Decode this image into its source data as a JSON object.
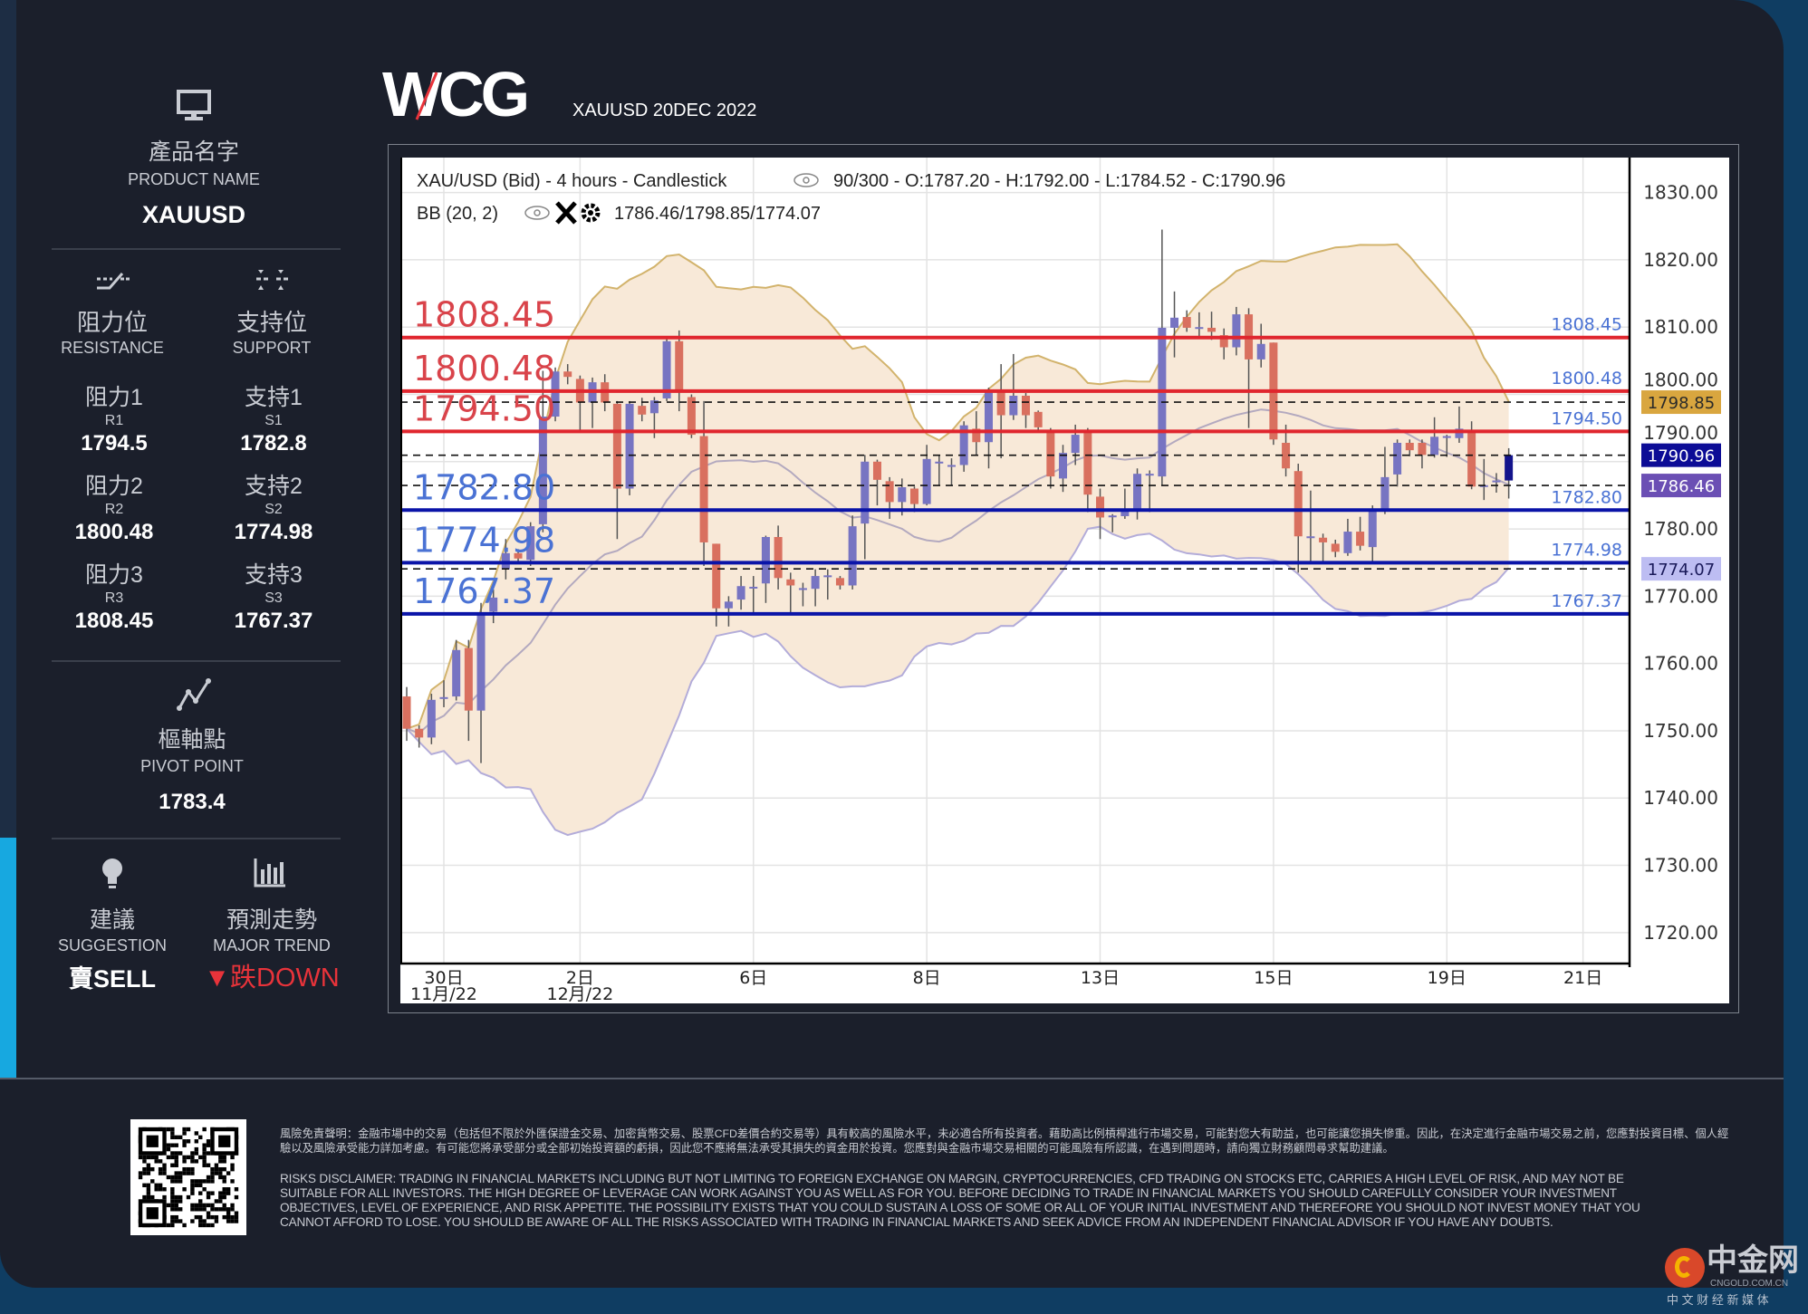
{
  "header": {
    "logo_text": "WCG",
    "subtitle": "XAUUSD 20DEC 2022"
  },
  "product": {
    "icon": "monitor-icon",
    "label_zh": "產品名字",
    "label_en": "PRODUCT NAME",
    "value": "XAUUSD"
  },
  "resistance": {
    "icon": "resistance-line-icon",
    "label_zh": "阻力位",
    "label_en": "RESISTANCE",
    "levels": [
      {
        "label_zh": "阻力1",
        "code": "R1",
        "value": "1794.5"
      },
      {
        "label_zh": "阻力2",
        "code": "R2",
        "value": "1800.48"
      },
      {
        "label_zh": "阻力3",
        "code": "R3",
        "value": "1808.45"
      }
    ]
  },
  "support": {
    "icon": "support-line-icon",
    "label_zh": "支持位",
    "label_en": "SUPPORT",
    "levels": [
      {
        "label_zh": "支持1",
        "code": "S1",
        "value": "1782.8"
      },
      {
        "label_zh": "支持2",
        "code": "S2",
        "value": "1774.98"
      },
      {
        "label_zh": "支持3",
        "code": "S3",
        "value": "1767.37"
      }
    ]
  },
  "pivot": {
    "icon": "pivot-icon",
    "label_zh": "樞軸點",
    "label_en": "PIVOT POINT",
    "value": "1783.4"
  },
  "suggestion": {
    "icon": "lightbulb-icon",
    "label_zh": "建議",
    "label_en": "SUGGESTION",
    "value": "賣SELL"
  },
  "trend": {
    "icon": "bar-chart-icon",
    "label_zh": "預測走勢",
    "label_en": "MAJOR TREND",
    "arrow": "▼",
    "value": "跌DOWN",
    "color": "#e8333a"
  },
  "chart_data": {
    "type": "candlestick",
    "title": "XAU/USD (Bid) - 4 hours - Candlestick",
    "info": "90/300 - O:1787.20 - H:1792.00 - L:1784.52 - C:1790.96",
    "indicator_label": "BB (20, 2)",
    "indicator_values": "1786.46/1798.85/1774.07",
    "ylim": [
      1715.4,
      1835.2
    ],
    "yticks": [
      "1830.00",
      "1820.00",
      "1810.00",
      "1800.00",
      "1790.00",
      "1780.00",
      "1770.00",
      "1760.00",
      "1750.00",
      "1740.00",
      "1730.00",
      "1720.00"
    ],
    "ytick_values": [
      1830,
      1820,
      1810,
      1800,
      1790,
      1780,
      1770,
      1760,
      1750,
      1740,
      1730,
      1720
    ],
    "xticks": [
      {
        "index": 3,
        "label": "30日",
        "sublabel": "11月/22"
      },
      {
        "index": 14,
        "label": "2日",
        "sublabel": "12月/22"
      },
      {
        "index": 28,
        "label": "6日"
      },
      {
        "index": 42,
        "label": "8日"
      },
      {
        "index": 56,
        "label": "13日"
      },
      {
        "index": 70,
        "label": "15日"
      },
      {
        "index": 84,
        "label": "19日"
      },
      {
        "index": 95,
        "label": "21日"
      }
    ],
    "grid": true,
    "colors": {
      "up": "#7774c2",
      "down": "#d9705f",
      "last": "#14148c",
      "band_fill": "#f8e9d8",
      "band_upper": "#d2b36c",
      "band_lower": "#b3acd9",
      "band_mid": "#b3a9bf",
      "resistance": "#e0262e",
      "support": "#0a14a8"
    },
    "bollinger": {
      "period": 20,
      "stddev": 2,
      "mid": 1786.46,
      "upper": 1798.85,
      "lower": 1774.07
    },
    "resistance_lines": [
      {
        "value": 1808.45,
        "label": "1808.45"
      },
      {
        "value": 1800.48,
        "label": "1800.48"
      },
      {
        "value": 1794.5,
        "label": "1794.50"
      }
    ],
    "support_lines": [
      {
        "value": 1782.8,
        "label": "1782.80"
      },
      {
        "value": 1774.98,
        "label": "1774.98"
      },
      {
        "value": 1767.37,
        "label": "1767.37"
      }
    ],
    "axis_markers": [
      {
        "value": 1798.85,
        "label": "1798.85",
        "bg": "#d9a63f",
        "fg": "#2a2a2a"
      },
      {
        "value": 1790.96,
        "label": "1790.96",
        "bg": "#0c0c96",
        "fg": "#ffffff"
      },
      {
        "value": 1786.46,
        "label": "1786.46",
        "bg": "#6b4fb4",
        "fg": "#ffffff"
      },
      {
        "value": 1774.07,
        "label": "1774.07",
        "bg": "#bdbdf2",
        "fg": "#1a1a5a"
      }
    ],
    "ohlc_columns": [
      "open",
      "high",
      "low",
      "close"
    ],
    "candles": [
      [
        1755.1,
        1756.5,
        1748.5,
        1750.3
      ],
      [
        1750.3,
        1750.8,
        1747.5,
        1749.0
      ],
      [
        1749.0,
        1755.5,
        1748.0,
        1754.6
      ],
      [
        1754.8,
        1757.5,
        1753.5,
        1755.0
      ],
      [
        1755.1,
        1763.5,
        1754.5,
        1762.0
      ],
      [
        1762.3,
        1763.5,
        1748.5,
        1753.0
      ],
      [
        1753.0,
        1769.0,
        1745.2,
        1767.4
      ],
      [
        1767.7,
        1771.0,
        1766.0,
        1769.8
      ],
      [
        1774.0,
        1778.5,
        1772.5,
        1776.4
      ],
      [
        1776.4,
        1777.0,
        1775.0,
        1775.6
      ],
      [
        1775.4,
        1781.0,
        1774.5,
        1780.4
      ],
      [
        1780.7,
        1803.5,
        1779.5,
        1796.7
      ],
      [
        1796.7,
        1804.0,
        1796.0,
        1803.4
      ],
      [
        1803.4,
        1804.5,
        1801.5,
        1802.6
      ],
      [
        1802.3,
        1802.8,
        1794.5,
        1798.8
      ],
      [
        1798.8,
        1802.5,
        1795.0,
        1801.8
      ],
      [
        1801.8,
        1803.0,
        1797.5,
        1798.8
      ],
      [
        1798.6,
        1799.0,
        1778.5,
        1786.0
      ],
      [
        1786.0,
        1799.0,
        1785.0,
        1798.6
      ],
      [
        1798.3,
        1799.5,
        1796.0,
        1797.0
      ],
      [
        1797.2,
        1799.6,
        1793.5,
        1799.1
      ],
      [
        1799.4,
        1808.5,
        1799.0,
        1807.9
      ],
      [
        1807.9,
        1809.5,
        1797.5,
        1800.4
      ],
      [
        1799.6,
        1800.0,
        1793.5,
        1794.0
      ],
      [
        1793.8,
        1799.0,
        1774.5,
        1778.0
      ],
      [
        1777.8,
        1777.8,
        1765.5,
        1768.2
      ],
      [
        1768.2,
        1770.0,
        1765.5,
        1769.2
      ],
      [
        1769.5,
        1773.0,
        1768.0,
        1771.5
      ],
      [
        1771.3,
        1773.0,
        1767.5,
        1771.4
      ],
      [
        1771.9,
        1779.0,
        1769.0,
        1778.8
      ],
      [
        1778.8,
        1780.5,
        1771.0,
        1772.7
      ],
      [
        1772.5,
        1773.5,
        1767.5,
        1771.6
      ],
      [
        1771.1,
        1772.0,
        1768.5,
        1771.2
      ],
      [
        1771.1,
        1774.0,
        1768.5,
        1773.0
      ],
      [
        1773.0,
        1774.0,
        1769.5,
        1773.1
      ],
      [
        1772.7,
        1773.0,
        1771.0,
        1771.6
      ],
      [
        1771.6,
        1782.0,
        1771.0,
        1780.4
      ],
      [
        1780.8,
        1791.0,
        1775.5,
        1790.0
      ],
      [
        1790.0,
        1790.3,
        1783.5,
        1787.3
      ],
      [
        1787.1,
        1787.7,
        1781.5,
        1784.0
      ],
      [
        1784.0,
        1787.5,
        1782.0,
        1786.2
      ],
      [
        1786.0,
        1786.3,
        1782.5,
        1783.7
      ],
      [
        1783.7,
        1792.5,
        1783.5,
        1790.4
      ],
      [
        1789.9,
        1791.0,
        1786.5,
        1790.0
      ],
      [
        1789.4,
        1790.5,
        1786.5,
        1789.5
      ],
      [
        1789.5,
        1796.0,
        1788.5,
        1795.4
      ],
      [
        1794.9,
        1797.5,
        1791.0,
        1792.9
      ],
      [
        1792.9,
        1801.0,
        1789.0,
        1800.5
      ],
      [
        1800.3,
        1804.5,
        1790.5,
        1796.9
      ],
      [
        1796.9,
        1806.0,
        1796.2,
        1799.8
      ],
      [
        1799.8,
        1800.2,
        1795.0,
        1796.9
      ],
      [
        1797.4,
        1797.6,
        1794.7,
        1795.1
      ],
      [
        1794.5,
        1795.0,
        1786.0,
        1787.8
      ],
      [
        1787.5,
        1792.5,
        1785.5,
        1791.3
      ],
      [
        1791.3,
        1795.5,
        1789.5,
        1794.0
      ],
      [
        1794.5,
        1795.0,
        1782.5,
        1785.1
      ],
      [
        1784.8,
        1786.0,
        1778.5,
        1781.7
      ],
      [
        1781.9,
        1782.2,
        1779.5,
        1782.0
      ],
      [
        1781.9,
        1786.0,
        1781.5,
        1782.6
      ],
      [
        1783.0,
        1789.0,
        1781.4,
        1788.2
      ],
      [
        1788.1,
        1788.7,
        1782.5,
        1788.2
      ],
      [
        1787.8,
        1824.5,
        1786.5,
        1809.9
      ],
      [
        1809.9,
        1815.3,
        1805.5,
        1811.4
      ],
      [
        1811.5,
        1812.5,
        1809.3,
        1809.9
      ],
      [
        1809.9,
        1812.2,
        1808.5,
        1810.0
      ],
      [
        1809.9,
        1812.3,
        1808.1,
        1809.3
      ],
      [
        1808.8,
        1809.8,
        1805.2,
        1807.0
      ],
      [
        1807.0,
        1813.0,
        1805.8,
        1811.9
      ],
      [
        1811.9,
        1812.8,
        1795.0,
        1805.2
      ],
      [
        1805.2,
        1810.5,
        1804.0,
        1807.5
      ],
      [
        1807.7,
        1807.7,
        1792.5,
        1793.3
      ],
      [
        1792.8,
        1795.5,
        1787.8,
        1789.0
      ],
      [
        1788.6,
        1789.7,
        1773.5,
        1778.9
      ],
      [
        1778.8,
        1785.7,
        1775.0,
        1778.9
      ],
      [
        1778.7,
        1779.3,
        1774.8,
        1778.0
      ],
      [
        1777.8,
        1778.4,
        1775.8,
        1776.6
      ],
      [
        1776.4,
        1781.5,
        1776.0,
        1779.6
      ],
      [
        1779.6,
        1781.8,
        1776.8,
        1777.5
      ],
      [
        1777.3,
        1783.5,
        1774.8,
        1783.0
      ],
      [
        1783.0,
        1792.2,
        1782.2,
        1787.7
      ],
      [
        1788.1,
        1793.3,
        1786.3,
        1792.8
      ],
      [
        1792.8,
        1793.3,
        1790.8,
        1791.7
      ],
      [
        1792.8,
        1793.3,
        1789.0,
        1791.0
      ],
      [
        1791.0,
        1796.6,
        1790.6,
        1793.7
      ],
      [
        1793.7,
        1794.0,
        1790.7,
        1793.8
      ],
      [
        1793.5,
        1798.2,
        1792.8,
        1794.9
      ],
      [
        1794.6,
        1796.0,
        1785.9,
        1786.3
      ],
      [
        1786.4,
        1790.4,
        1784.3,
        1786.5
      ],
      [
        1787.1,
        1788.3,
        1785.4,
        1787.2
      ],
      [
        1787.2,
        1792.0,
        1784.52,
        1790.96
      ]
    ]
  },
  "disclaimer": {
    "zh": "風險免責聲明：金融市場中的交易（包括但不限於外匯保證金交易、加密貨幣交易、股票CFD差價合約交易等）具有較高的風險水平，未必適合所有投資者。藉助高比例槓桿進行市場交易，可能對您大有助益，也可能讓您損失慘重。因此，在決定進行金融市場交易之前，您應對投資目標、個人經驗以及風險承受能力詳加考慮。有可能您將承受部分或全部初始投資額的虧損，因此您不應將無法承受其損失的資金用於投資。您應對與金融市場交易相關的可能風險有所認識，在遇到問題時，請向獨立財務顧問尋求幫助建議。",
    "en": "RISKS DISCLAIMER: TRADING IN FINANCIAL MARKETS INCLUDING BUT NOT LIMITING TO FOREIGN EXCHANGE ON MARGIN, CRYPTOCURRENCIES, CFD TRADING ON STOCKS ETC, CARRIES A HIGH LEVEL OF RISK, AND MAY NOT BE SUITABLE FOR ALL INVESTORS. THE HIGH DEGREE OF LEVERAGE CAN WORK AGAINST YOU AS WELL AS FOR YOU. BEFORE DECIDING TO TRADE IN FINANCIAL MARKETS YOU SHOULD CAREFULLY CONSIDER YOUR INVESTMENT OBJECTIVES, LEVEL OF EXPERIENCE, AND RISK APPETITE. THE POSSIBILITY EXISTS THAT YOU COULD SUSTAIN A LOSS OF SOME OR ALL OF YOUR INITIAL INVESTMENT AND THEREFORE YOU SHOULD NOT INVEST MONEY THAT YOU CANNOT AFFORD TO LOSE. YOU SHOULD BE AWARE OF ALL THE RISKS ASSOCIATED WITH TRADING IN FINANCIAL MARKETS AND SEEK ADVICE FROM AN INDEPENDENT FINANCIAL ADVISOR IF YOU HAVE ANY DOUBTS."
  },
  "watermark": {
    "name": "中金网",
    "domain": "CNGOLD.COM.CN",
    "tagline": "中 文 财 经 新 媒 体"
  }
}
